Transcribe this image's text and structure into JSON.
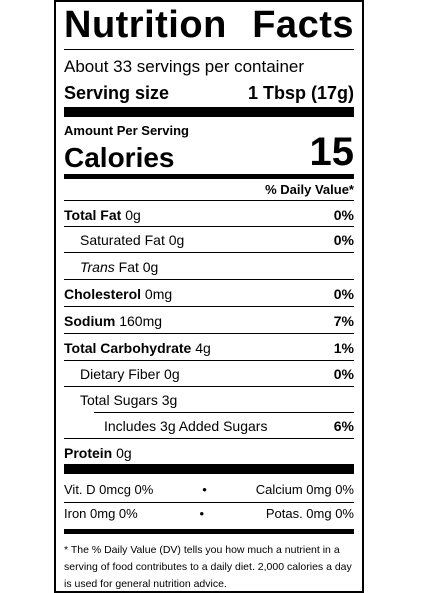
{
  "label": {
    "title_part1": "Nutrition",
    "title_part2": "Facts",
    "servings_per_container": "About 33 servings per container",
    "serving_size_label": "Serving size",
    "serving_size_value": "1 Tbsp (17g)",
    "amount_per_serving": "Amount Per Serving",
    "calories_label": "Calories",
    "calories_value": "15",
    "daily_value_header": "% Daily Value*",
    "nutrients": [
      {
        "name": "Total Fat",
        "amount": "0g",
        "dv": "0%"
      },
      {
        "name": "Saturated Fat",
        "amount": "0g",
        "dv": "0%"
      },
      {
        "name": "Trans",
        "name_suffix": "Fat",
        "amount": "0g",
        "dv": ""
      },
      {
        "name": "Cholesterol",
        "amount": "0mg",
        "dv": "0%"
      },
      {
        "name": "Sodium",
        "amount": "160mg",
        "dv": "7%"
      },
      {
        "name": "Total Carbohydrate",
        "amount": "4g",
        "dv": "1%"
      },
      {
        "name": "Dietary Fiber",
        "amount": "0g",
        "dv": "0%"
      },
      {
        "name": "Total Sugars",
        "amount": "3g",
        "dv": ""
      },
      {
        "name": "Includes 3g Added Sugars",
        "amount": "",
        "dv": "6%"
      },
      {
        "name": "Protein",
        "amount": "0g",
        "dv": ""
      }
    ],
    "vitamins": [
      {
        "left": "Vit. D 0mcg 0%",
        "right": "Calcium 0mg 0%"
      },
      {
        "left": "Iron 0mg 0%",
        "right": "Potas. 0mg 0%"
      }
    ],
    "bullet": "•",
    "footnote": "* The % Daily Value (DV) tells you how much a nutrient in a serving of food contributes to a daily diet. 2,000 calories a day is used for general nutrition advice."
  }
}
